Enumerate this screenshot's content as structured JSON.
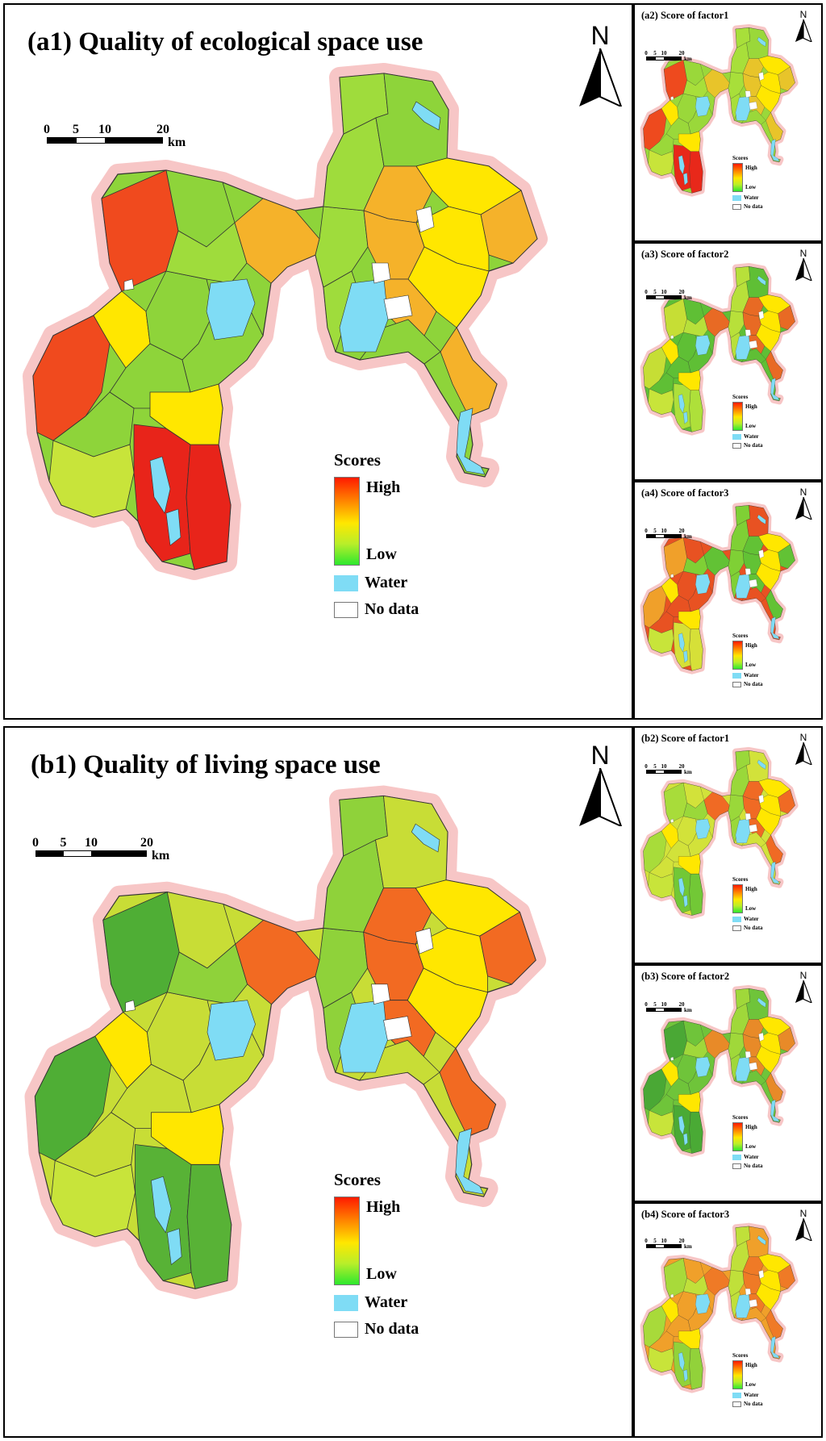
{
  "top": {
    "main": {
      "title": "(a1) Quality of ecological space use",
      "north": "N",
      "scale": {
        "ticks": [
          "0",
          "5",
          "10",
          "20"
        ],
        "unit": "km"
      },
      "legend": {
        "title": "Scores",
        "high": "High",
        "low": "Low",
        "water": "Water",
        "nodata": "No data"
      }
    },
    "insets": [
      {
        "title": "(a2) Score of factor1",
        "north": "N",
        "scale_ticks": [
          "0",
          "5",
          "10",
          "20"
        ],
        "unit": "km",
        "legend": {
          "title": "Scores",
          "high": "High",
          "low": "Low",
          "water": "Water",
          "nodata": "No data"
        }
      },
      {
        "title": "(a3) Score of factor2",
        "north": "N",
        "scale_ticks": [
          "0",
          "5",
          "10",
          "20"
        ],
        "unit": "km",
        "legend": {
          "title": "Scores",
          "high": "High",
          "low": "Low",
          "water": "Water",
          "nodata": "No data"
        }
      },
      {
        "title": "(a4) Score of factor3",
        "north": "N",
        "scale_ticks": [
          "0",
          "5",
          "10",
          "20"
        ],
        "unit": "km",
        "legend": {
          "title": "Scores",
          "high": "High",
          "low": "Low",
          "water": "Water",
          "nodata": "No data"
        }
      }
    ]
  },
  "bottom": {
    "main": {
      "title": "(b1) Quality of living space use",
      "north": "N",
      "scale": {
        "ticks": [
          "0",
          "5",
          "10",
          "20"
        ],
        "unit": "km"
      },
      "legend": {
        "title": "Scores",
        "high": "High",
        "low": "Low",
        "water": "Water",
        "nodata": "No data"
      }
    },
    "insets": [
      {
        "title": "(b2) Score of factor1",
        "north": "N",
        "scale_ticks": [
          "0",
          "5",
          "10",
          "20"
        ],
        "unit": "km",
        "legend": {
          "title": "Scores",
          "high": "High",
          "low": "Low",
          "water": "Water",
          "nodata": "No data"
        }
      },
      {
        "title": "(b3) Score of factor2",
        "north": "N",
        "scale_ticks": [
          "0",
          "5",
          "10",
          "20"
        ],
        "unit": "km",
        "legend": {
          "title": "Scores",
          "high": "High",
          "low": "Low",
          "water": "Water",
          "nodata": "No data"
        }
      },
      {
        "title": "(b4) Score of factor3",
        "north": "N",
        "scale_ticks": [
          "0",
          "5",
          "10",
          "20"
        ],
        "unit": "km",
        "legend": {
          "title": "Scores",
          "high": "High",
          "low": "Low",
          "water": "Water",
          "nodata": "No data"
        }
      }
    ]
  },
  "colors": {
    "high": "#ff1a00",
    "mid": "#ffe700",
    "low": "#2ee82e",
    "water": "#7fdcf5",
    "nodata": "#ffffff",
    "halo": "#f7c6c6"
  },
  "map_style": {
    "a1": {
      "west": "#f04a1e",
      "center": "#8ed43a",
      "north": "#9fdc3c",
      "east": "#f5b22a",
      "south": "#e8241a"
    },
    "a2": {
      "west": "#ee4a1e",
      "center": "#9ad83a",
      "north": "#a8df3a",
      "east": "#e8c42a",
      "south": "#e8281a"
    },
    "a3": {
      "west": "#c6de35",
      "center": "#5fbf35",
      "north": "#b8e03a",
      "east": "#e86a24",
      "south": "#aee03a"
    },
    "a4": {
      "west": "#f0a02a",
      "center": "#e85222",
      "north": "#7fd035",
      "east": "#62c235",
      "south": "#d6e038"
    },
    "b1": {
      "west": "#4fae35",
      "center": "#c8dd36",
      "north": "#8fd23a",
      "east": "#f26a22",
      "south": "#58b236"
    },
    "b2": {
      "west": "#a8dc3a",
      "center": "#d2e23a",
      "north": "#9ad83a",
      "east": "#f06a24",
      "south": "#72c836"
    },
    "b3": {
      "west": "#4aa835",
      "center": "#6fc43a",
      "north": "#a0d83a",
      "east": "#e88a28",
      "south": "#4aaa35"
    },
    "b4": {
      "west": "#a8da3a",
      "center": "#f0a02a",
      "north": "#c0e03a",
      "east": "#ef7a26",
      "south": "#92d23a"
    }
  }
}
